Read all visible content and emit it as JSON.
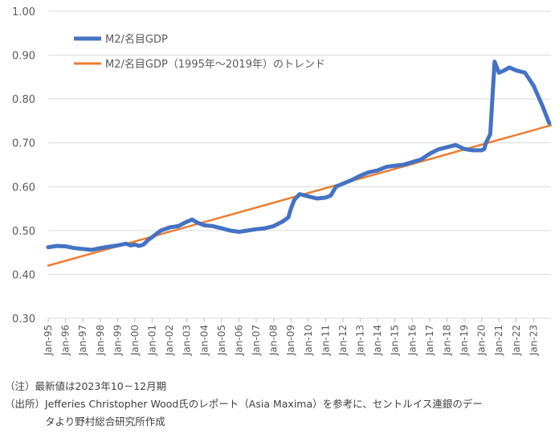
{
  "chart_data": {
    "type": "line",
    "title": "",
    "xlabel": "",
    "ylabel": "",
    "ylim": [
      0.3,
      1.0
    ],
    "yticks": [
      "1.00",
      "0.90",
      "0.80",
      "0.70",
      "0.60",
      "0.50",
      "0.40",
      "0.30"
    ],
    "ytick_values": [
      1.0,
      0.9,
      0.8,
      0.7,
      0.6,
      0.5,
      0.4,
      0.3
    ],
    "x_range": [
      1995.0,
      2024.0
    ],
    "categories": [
      "Jan-95",
      "Jan-96",
      "Jan-97",
      "Jan-98",
      "Jan-99",
      "Jan-00",
      "Jan-01",
      "Jan-02",
      "Jan-03",
      "Jan-04",
      "Jan-05",
      "Jan-06",
      "Jan-07",
      "Jan-08",
      "Jan-09",
      "Jan-10",
      "Jan-11",
      "Jan-12",
      "Jan-13",
      "Jan-14",
      "Jan-15",
      "Jan-16",
      "Jan-17",
      "Jan-18",
      "Jan-19",
      "Jan-20",
      "Jan-21",
      "Jan-22",
      "Jan-23"
    ],
    "grid": true,
    "legend_position": "top-left",
    "series": [
      {
        "name": "M2/名目GDP",
        "color": "#4472C4",
        "x": [
          1995.0,
          1995.5,
          1996.0,
          1996.5,
          1997.0,
          1997.5,
          1998.0,
          1998.5,
          1999.0,
          1999.5,
          1999.75,
          2000.0,
          2000.25,
          2000.5,
          2000.75,
          2001.0,
          2001.5,
          2002.0,
          2002.5,
          2003.0,
          2003.3,
          2003.6,
          2004.0,
          2004.5,
          2005.0,
          2005.5,
          2006.0,
          2006.5,
          2007.0,
          2007.5,
          2008.0,
          2008.5,
          2008.85,
          2009.0,
          2009.2,
          2009.5,
          2010.0,
          2010.5,
          2011.0,
          2011.3,
          2011.6,
          2012.0,
          2012.5,
          2013.0,
          2013.5,
          2014.0,
          2014.5,
          2015.0,
          2015.5,
          2016.0,
          2016.5,
          2017.0,
          2017.5,
          2018.0,
          2018.5,
          2019.0,
          2019.5,
          2020.0,
          2020.15,
          2020.25,
          2020.5,
          2020.75,
          2021.0,
          2021.3,
          2021.6,
          2022.0,
          2022.5,
          2023.0,
          2023.5,
          2023.9
        ],
        "values": [
          0.462,
          0.465,
          0.464,
          0.46,
          0.458,
          0.456,
          0.46,
          0.463,
          0.466,
          0.47,
          0.466,
          0.468,
          0.465,
          0.468,
          0.478,
          0.485,
          0.5,
          0.507,
          0.51,
          0.52,
          0.525,
          0.518,
          0.512,
          0.51,
          0.505,
          0.5,
          0.497,
          0.5,
          0.503,
          0.505,
          0.51,
          0.52,
          0.53,
          0.55,
          0.57,
          0.583,
          0.578,
          0.573,
          0.575,
          0.58,
          0.6,
          0.607,
          0.615,
          0.625,
          0.633,
          0.637,
          0.645,
          0.648,
          0.65,
          0.656,
          0.662,
          0.675,
          0.685,
          0.69,
          0.695,
          0.686,
          0.683,
          0.683,
          0.686,
          0.7,
          0.72,
          0.885,
          0.86,
          0.865,
          0.872,
          0.865,
          0.86,
          0.83,
          0.785,
          0.745
        ]
      },
      {
        "name": "M2/名目GDP（1995年～2019年）のトレンド",
        "color": "#ED7D31",
        "x": [
          1995.0,
          2024.0
        ],
        "values": [
          0.42,
          0.74
        ]
      }
    ]
  },
  "notes": {
    "note1": "（注）最新値は2023年10－12月期",
    "source_line1": "（出所）Jefferies Christopher Wood氏のレポート（Asia Maxima）を参考に、セントルイス連銀のデー",
    "source_line2": "タより野村総合研究所作成"
  }
}
